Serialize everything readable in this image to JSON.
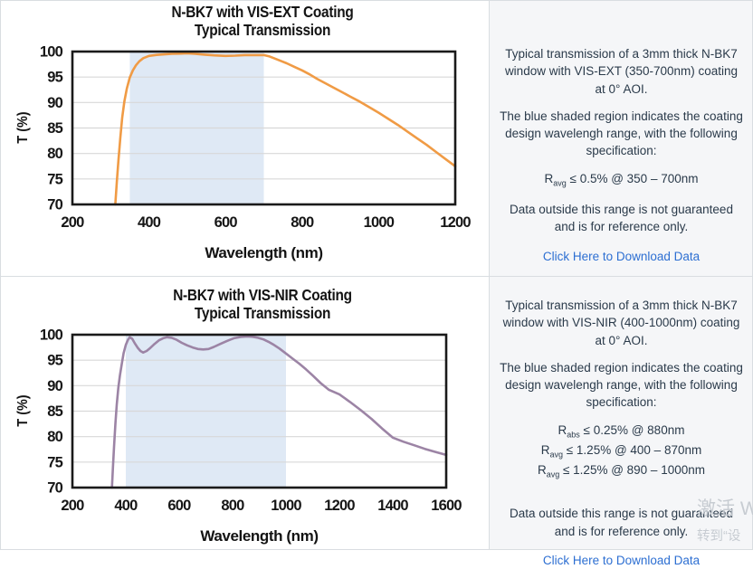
{
  "chart_data": [
    {
      "type": "line",
      "title_line1": "N-BK7 with VIS-EXT Coating",
      "title_line2": "Typical Transmission",
      "xlabel": "Wavelength (nm)",
      "ylabel": "T (%)",
      "xlim": [
        200,
        1200
      ],
      "ylim": [
        70,
        100
      ],
      "xticks": [
        200,
        400,
        600,
        800,
        1000,
        1200
      ],
      "yticks": [
        70,
        75,
        80,
        85,
        90,
        95,
        100
      ],
      "grid": "horizontal",
      "legend": "none",
      "shaded_region": {
        "x0": 350,
        "x1": 700,
        "color": "#dfe9f5"
      },
      "line_color": "#f09b45",
      "series": [
        {
          "name": "VIS-EXT transmission",
          "x": [
            312,
            316,
            320,
            325,
            330,
            336,
            342,
            350,
            358,
            366,
            375,
            385,
            400,
            420,
            440,
            460,
            480,
            500,
            520,
            545,
            570,
            600,
            625,
            650,
            675,
            700,
            715,
            730,
            745,
            760,
            780,
            800,
            820,
            840,
            860,
            880,
            900,
            925,
            950,
            975,
            1000,
            1025,
            1050,
            1075,
            1100,
            1125,
            1150,
            1175,
            1200
          ],
          "y": [
            70,
            74.5,
            78.5,
            83,
            87,
            90.3,
            92.7,
            94.9,
            96.3,
            97.3,
            98.1,
            98.7,
            99.15,
            99.35,
            99.45,
            99.55,
            99.6,
            99.65,
            99.55,
            99.4,
            99.25,
            99.15,
            99.2,
            99.3,
            99.3,
            99.3,
            99.05,
            98.6,
            98.15,
            97.7,
            97.0,
            96.3,
            95.5,
            94.6,
            93.8,
            93.0,
            92.2,
            91.2,
            90.2,
            89.1,
            88.0,
            86.8,
            85.6,
            84.3,
            83.0,
            81.7,
            80.3,
            78.9,
            77.5
          ]
        }
      ]
    },
    {
      "type": "line",
      "title_line1": "N-BK7 with VIS-NIR Coating",
      "title_line2": "Typical Transmission",
      "xlabel": "Wavelength (nm)",
      "ylabel": "T (%)",
      "xlim": [
        200,
        1600
      ],
      "ylim": [
        70,
        100
      ],
      "xticks": [
        200,
        400,
        600,
        800,
        1000,
        1200,
        1400,
        1600
      ],
      "yticks": [
        70,
        75,
        80,
        85,
        90,
        95,
        100
      ],
      "grid": "horizontal",
      "legend": "none",
      "shaded_region": {
        "x0": 400,
        "x1": 1000,
        "color": "#dfe9f5"
      },
      "line_color": "#9c84a5",
      "series": [
        {
          "name": "VIS-NIR transmission",
          "x": [
            348,
            352,
            356,
            361,
            366,
            372,
            378,
            385,
            392,
            400,
            408,
            415,
            424,
            434,
            445,
            455,
            465,
            478,
            492,
            508,
            524,
            540,
            555,
            572,
            590,
            610,
            630,
            650,
            670,
            690,
            710,
            730,
            755,
            780,
            805,
            830,
            855,
            875,
            895,
            915,
            935,
            955,
            975,
            1000,
            1025,
            1050,
            1075,
            1100,
            1130,
            1160,
            1200,
            1240,
            1280,
            1320,
            1360,
            1400,
            1440,
            1480,
            1520,
            1560,
            1600
          ],
          "y": [
            70,
            74,
            78,
            82.5,
            86.3,
            89.5,
            92,
            94.3,
            96.4,
            98,
            99,
            99.5,
            99.2,
            98.3,
            97.4,
            96.8,
            96.5,
            96.8,
            97.4,
            98.2,
            98.9,
            99.3,
            99.5,
            99.4,
            99,
            98.4,
            97.9,
            97.5,
            97.2,
            97.1,
            97.2,
            97.6,
            98.2,
            98.8,
            99.3,
            99.55,
            99.65,
            99.6,
            99.4,
            99.1,
            98.6,
            98,
            97.3,
            96.3,
            95.3,
            94.3,
            93.2,
            92,
            90.5,
            89.2,
            88.3,
            86.8,
            85.2,
            83.5,
            81.6,
            79.8,
            79.0,
            78.3,
            77.6,
            77.0,
            76.4
          ]
        }
      ]
    }
  ],
  "panels": [
    {
      "p1": "Typical transmission of a 3mm thick N-BK7 window with VIS-EXT (350-700nm) coating at 0° AOI.",
      "p2": "The blue shaded region indicates the coating design wavelengh range, with the following specification:",
      "specs": [
        {
          "base": "R",
          "sub": "avg",
          "rest": "≤ 0.5% @ 350 – 700nm"
        }
      ],
      "p3": "Data outside this range is not guaranteed and is for reference only.",
      "link": "Click Here to Download Data"
    },
    {
      "p1": "Typical transmission of a 3mm thick N-BK7 window with VIS-NIR (400-1000nm) coating at 0° AOI.",
      "p2": "The blue shaded region indicates the coating design wavelengh range, with the following specification:",
      "specs": [
        {
          "base": "R",
          "sub": "abs",
          "rest": "≤ 0.25% @ 880nm"
        },
        {
          "base": "R",
          "sub": "avg",
          "rest": "≤ 1.25% @ 400 – 870nm"
        },
        {
          "base": "R",
          "sub": "avg",
          "rest": "≤ 1.25% @ 890 – 1000nm"
        }
      ],
      "p3": "Data outside this range is not guaranteed and is for reference only.",
      "link": "Click Here to Download Data"
    }
  ],
  "colors": {
    "vis_ext_line": "#f09b45",
    "vis_nir_line": "#9c84a5",
    "shaded_region": "#dfe9f5",
    "gridline": "#d8d8d8",
    "frame": "#1a1a1a",
    "panel_bg": "#f5f6f8",
    "link": "#2d6fd2"
  },
  "watermark": {
    "line1": "激活 W",
    "line2": "转到“设"
  }
}
